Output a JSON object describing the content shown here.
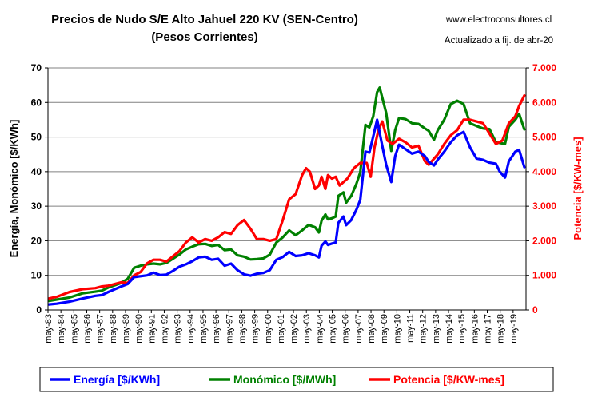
{
  "chart_data": {
    "type": "line",
    "title": "Precios de Nudo S/E Alto Jahuel 220 KV (SEN-Centro)",
    "subtitle": "(Pesos Corrientes)",
    "source": "www.electroconsultores.cl",
    "updated": "Actualizado a fij. de abr-20",
    "ylabel_left": "Energía, Monómico [$/KWh]",
    "ylabel_right": "Potencia [$/KW-mes]",
    "ylim_left": [
      0,
      70
    ],
    "ylim_right": [
      0,
      7000
    ],
    "yticks_left": [
      "0",
      "10",
      "20",
      "30",
      "40",
      "50",
      "60",
      "70"
    ],
    "yticks_right": [
      "0",
      "1.000",
      "2.000",
      "3.000",
      "4.000",
      "5.000",
      "6.000",
      "7.000"
    ],
    "xlim": [
      1983.33,
      2020.33
    ],
    "x_tick_labels": [
      "may-83",
      "may-84",
      "may-85",
      "may-86",
      "may-87",
      "may-88",
      "may-89",
      "may-90",
      "may-91",
      "may-92",
      "may-93",
      "may-94",
      "may-95",
      "may-96",
      "may-97",
      "may-98",
      "may-99",
      "may-00",
      "may-01",
      "may-02",
      "may-03",
      "may-04",
      "may-05",
      "may-06",
      "may-07",
      "may-08",
      "may-09",
      "may-10",
      "may-11",
      "may-12",
      "may-13",
      "may-14",
      "may-15",
      "may-16",
      "may-17",
      "may-18",
      "may-19"
    ],
    "grid": true,
    "legend_position": "bottom",
    "series": [
      {
        "name": "Energía [$/KWh]",
        "color": "#0000ff",
        "axis": "left",
        "points": [
          [
            1983.4,
            1.6
          ],
          [
            1984,
            1.8
          ],
          [
            1985,
            2.4
          ],
          [
            1986,
            3.3
          ],
          [
            1987,
            4.1
          ],
          [
            1987.5,
            4.3
          ],
          [
            1988,
            5.2
          ],
          [
            1989,
            6.8
          ],
          [
            1989.5,
            7.5
          ],
          [
            1990,
            9.5
          ],
          [
            1991,
            10
          ],
          [
            1991.5,
            10.8
          ],
          [
            1992,
            10.1
          ],
          [
            1992.5,
            10.2
          ],
          [
            1993,
            11.3
          ],
          [
            1993.5,
            12.5
          ],
          [
            1994,
            13.2
          ],
          [
            1994.5,
            14.1
          ],
          [
            1995,
            15.2
          ],
          [
            1995.5,
            15.4
          ],
          [
            1996,
            14.5
          ],
          [
            1996.5,
            14.8
          ],
          [
            1997,
            12.8
          ],
          [
            1997.5,
            13.4
          ],
          [
            1998,
            11.5
          ],
          [
            1998.5,
            10.3
          ],
          [
            1999,
            9.9
          ],
          [
            1999.5,
            10.5
          ],
          [
            2000,
            10.7
          ],
          [
            2000.5,
            11.5
          ],
          [
            2001,
            14.5
          ],
          [
            2001.5,
            15.3
          ],
          [
            2002,
            16.8
          ],
          [
            2002.5,
            15.6
          ],
          [
            2003,
            15.8
          ],
          [
            2003.5,
            16.4
          ],
          [
            2004,
            15.8
          ],
          [
            2004.3,
            15.2
          ],
          [
            2004.5,
            18.6
          ],
          [
            2004.8,
            19.8
          ],
          [
            2005,
            18.8
          ],
          [
            2005.3,
            19.2
          ],
          [
            2005.6,
            19.5
          ],
          [
            2005.8,
            25.2
          ],
          [
            2006.2,
            27
          ],
          [
            2006.4,
            24.5
          ],
          [
            2006.8,
            26
          ],
          [
            2007.2,
            29
          ],
          [
            2007.5,
            31.8
          ],
          [
            2007.9,
            45.8
          ],
          [
            2008.2,
            45.5
          ],
          [
            2008.5,
            50.2
          ],
          [
            2008.8,
            55
          ],
          [
            2009.2,
            47.5
          ],
          [
            2009.5,
            42
          ],
          [
            2009.9,
            37
          ],
          [
            2010.2,
            44.5
          ],
          [
            2010.5,
            47.8
          ],
          [
            2011,
            46.5
          ],
          [
            2011.5,
            45.2
          ],
          [
            2012,
            45.8
          ],
          [
            2012.5,
            44.5
          ],
          [
            2012.8,
            42.8
          ],
          [
            2013.2,
            41.8
          ],
          [
            2013.5,
            43.5
          ],
          [
            2014,
            45.8
          ],
          [
            2014.5,
            48.5
          ],
          [
            2015,
            50.5
          ],
          [
            2015.5,
            51.5
          ],
          [
            2016,
            47
          ],
          [
            2016.5,
            43.8
          ],
          [
            2017,
            43.4
          ],
          [
            2017.5,
            42.6
          ],
          [
            2018,
            42.3
          ],
          [
            2018.3,
            40
          ],
          [
            2018.7,
            38.3
          ],
          [
            2019,
            43
          ],
          [
            2019.5,
            45.8
          ],
          [
            2019.8,
            46.3
          ],
          [
            2020.2,
            41.3
          ]
        ]
      },
      {
        "name": "Monómico [$/MWh]",
        "color": "#008000",
        "axis": "left",
        "points": [
          [
            1983.4,
            2.6
          ],
          [
            1984,
            3
          ],
          [
            1985,
            3.6
          ],
          [
            1986,
            4.8
          ],
          [
            1987,
            5.3
          ],
          [
            1987.5,
            5.6
          ],
          [
            1988,
            6.5
          ],
          [
            1989,
            7.8
          ],
          [
            1989.5,
            9
          ],
          [
            1990,
            12.2
          ],
          [
            1990.5,
            12.8
          ],
          [
            1991,
            13.2
          ],
          [
            1991.5,
            13.4
          ],
          [
            1992,
            13.2
          ],
          [
            1992.5,
            13.6
          ],
          [
            1993,
            14.8
          ],
          [
            1993.5,
            16
          ],
          [
            1994,
            17.5
          ],
          [
            1994.5,
            18.3
          ],
          [
            1995,
            19
          ],
          [
            1995.5,
            19.1
          ],
          [
            1996,
            18.5
          ],
          [
            1996.5,
            18.8
          ],
          [
            1997,
            17.3
          ],
          [
            1997.5,
            17.5
          ],
          [
            1998,
            15.8
          ],
          [
            1998.5,
            15.4
          ],
          [
            1999,
            14.6
          ],
          [
            1999.5,
            14.7
          ],
          [
            2000,
            14.9
          ],
          [
            2000.5,
            16
          ],
          [
            2001,
            19.5
          ],
          [
            2001.5,
            21
          ],
          [
            2002,
            23
          ],
          [
            2002.5,
            21.6
          ],
          [
            2003,
            23
          ],
          [
            2003.5,
            24.6
          ],
          [
            2004,
            23.9
          ],
          [
            2004.3,
            22.4
          ],
          [
            2004.5,
            25.8
          ],
          [
            2004.8,
            27.6
          ],
          [
            2005,
            26.2
          ],
          [
            2005.3,
            26.5
          ],
          [
            2005.6,
            27
          ],
          [
            2005.8,
            33
          ],
          [
            2006.2,
            34
          ],
          [
            2006.4,
            31
          ],
          [
            2006.8,
            33
          ],
          [
            2007.2,
            36.5
          ],
          [
            2007.5,
            39.8
          ],
          [
            2007.9,
            53.5
          ],
          [
            2008.2,
            52.8
          ],
          [
            2008.5,
            56
          ],
          [
            2008.8,
            63
          ],
          [
            2009,
            64.3
          ],
          [
            2009.5,
            57
          ],
          [
            2009.9,
            46
          ],
          [
            2010.2,
            52
          ],
          [
            2010.5,
            55.5
          ],
          [
            2011,
            55.2
          ],
          [
            2011.5,
            54
          ],
          [
            2012,
            53.8
          ],
          [
            2012.5,
            52.5
          ],
          [
            2012.8,
            51.8
          ],
          [
            2013.2,
            49.2
          ],
          [
            2013.5,
            52
          ],
          [
            2014,
            55
          ],
          [
            2014.5,
            59.5
          ],
          [
            2015,
            60.5
          ],
          [
            2015.5,
            59.5
          ],
          [
            2016,
            54
          ],
          [
            2016.5,
            53.2
          ],
          [
            2017,
            52.5
          ],
          [
            2017.5,
            52.3
          ],
          [
            2018,
            48.5
          ],
          [
            2018.3,
            48.3
          ],
          [
            2018.7,
            48
          ],
          [
            2019,
            53
          ],
          [
            2019.5,
            55
          ],
          [
            2019.8,
            56.7
          ],
          [
            2020.2,
            52.2
          ]
        ]
      },
      {
        "name": "Potencia [$/KW-mes]",
        "color": "#ff0000",
        "axis": "right",
        "points": [
          [
            1983.4,
            330
          ],
          [
            1984,
            380
          ],
          [
            1985,
            520
          ],
          [
            1986,
            600
          ],
          [
            1987,
            630
          ],
          [
            1987.5,
            680
          ],
          [
            1988,
            700
          ],
          [
            1989,
            800
          ],
          [
            1989.5,
            780
          ],
          [
            1990,
            1000
          ],
          [
            1990.5,
            1100
          ],
          [
            1991,
            1350
          ],
          [
            1991.5,
            1450
          ],
          [
            1992,
            1450
          ],
          [
            1992.5,
            1400
          ],
          [
            1993,
            1550
          ],
          [
            1993.5,
            1700
          ],
          [
            1994,
            1950
          ],
          [
            1994.5,
            2100
          ],
          [
            1995,
            1950
          ],
          [
            1995.5,
            2050
          ],
          [
            1996,
            2000
          ],
          [
            1996.5,
            2100
          ],
          [
            1997,
            2250
          ],
          [
            1997.5,
            2200
          ],
          [
            1998,
            2450
          ],
          [
            1998.5,
            2600
          ],
          [
            1999,
            2350
          ],
          [
            1999.5,
            2050
          ],
          [
            2000,
            2050
          ],
          [
            2000.5,
            2000
          ],
          [
            2001,
            2050
          ],
          [
            2001.5,
            2600
          ],
          [
            2002,
            3200
          ],
          [
            2002.5,
            3350
          ],
          [
            2003,
            3900
          ],
          [
            2003.3,
            4100
          ],
          [
            2003.6,
            4000
          ],
          [
            2004,
            3500
          ],
          [
            2004.3,
            3600
          ],
          [
            2004.5,
            3850
          ],
          [
            2004.8,
            3500
          ],
          [
            2005,
            3900
          ],
          [
            2005.3,
            3800
          ],
          [
            2005.6,
            3850
          ],
          [
            2005.9,
            3600
          ],
          [
            2006.5,
            3800
          ],
          [
            2007,
            4100
          ],
          [
            2007.5,
            4250
          ],
          [
            2008,
            4250
          ],
          [
            2008.3,
            3850
          ],
          [
            2008.6,
            4700
          ],
          [
            2008.9,
            5200
          ],
          [
            2009.2,
            5450
          ],
          [
            2009.6,
            4900
          ],
          [
            2010,
            4800
          ],
          [
            2010.5,
            4950
          ],
          [
            2011,
            4850
          ],
          [
            2011.5,
            4700
          ],
          [
            2012,
            4750
          ],
          [
            2012.5,
            4300
          ],
          [
            2012.8,
            4200
          ],
          [
            2013.5,
            4500
          ],
          [
            2014,
            4800
          ],
          [
            2014.5,
            5050
          ],
          [
            2015,
            5200
          ],
          [
            2015.5,
            5500
          ],
          [
            2016,
            5500
          ],
          [
            2016.5,
            5450
          ],
          [
            2017,
            5400
          ],
          [
            2017.5,
            5100
          ],
          [
            2018,
            4800
          ],
          [
            2018.5,
            4900
          ],
          [
            2019,
            5400
          ],
          [
            2019.5,
            5600
          ],
          [
            2019.8,
            5900
          ],
          [
            2020.2,
            6200
          ]
        ]
      }
    ]
  }
}
